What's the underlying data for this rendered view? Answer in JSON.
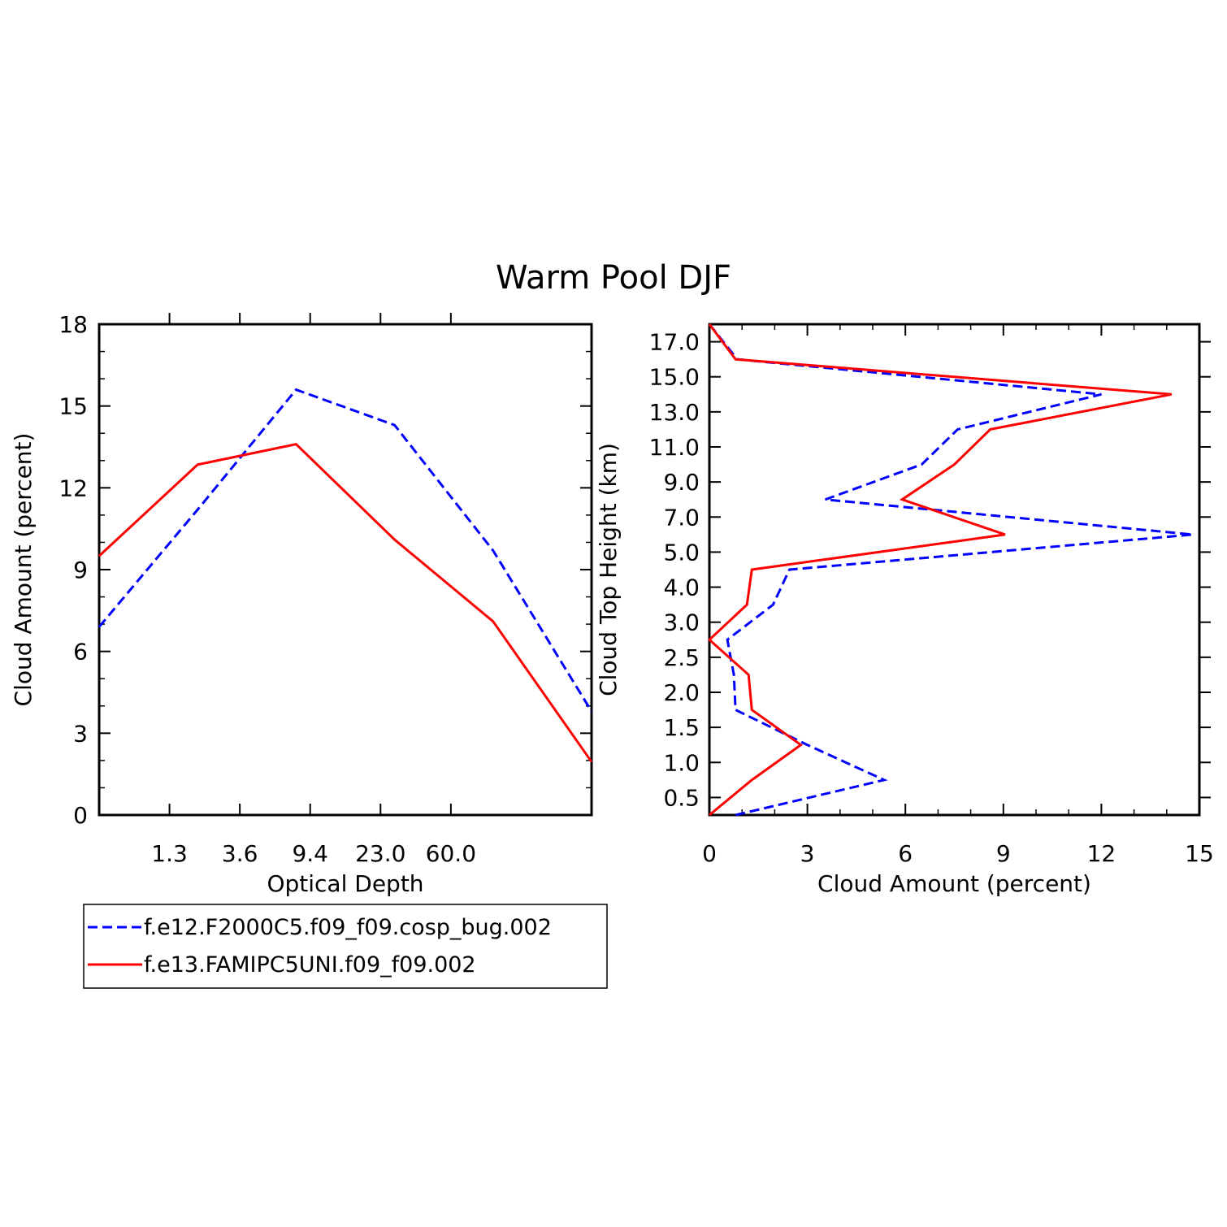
{
  "title": "Warm Pool DJF",
  "colors": {
    "series_a": "#0000ff",
    "series_b": "#ff0000",
    "axis": "#000000"
  },
  "legend": {
    "entries": [
      {
        "label": "f.e12.F2000C5.f09_f09.cosp_bug.002",
        "style": "dashed",
        "color": "#0000ff"
      },
      {
        "label": "f.e13.FAMIPC5UNI.f09_f09.002",
        "style": "solid",
        "color": "#ff0000"
      }
    ]
  },
  "chart_data": [
    {
      "type": "line",
      "xlabel": "Optical Depth",
      "ylabel": "Cloud Amount (percent)",
      "ylim": [
        0,
        18
      ],
      "y_ticks": [
        "0",
        "3",
        "6",
        "9",
        "12",
        "15",
        "18"
      ],
      "x_tick_labels": [
        "1.3",
        "3.6",
        "9.4",
        "23.0",
        "60.0"
      ],
      "x_bins": 7,
      "series": [
        {
          "name": "f.e12.F2000C5.f09_f09.cosp_bug.002",
          "color": "#0000ff",
          "dash": true,
          "values": [
            6.9,
            11.2,
            15.6,
            14.3,
            9.7,
            3.8
          ]
        },
        {
          "name": "f.e13.FAMIPC5UNI.f09_f09.002",
          "color": "#ff0000",
          "dash": false,
          "values": [
            9.5,
            12.85,
            13.6,
            10.1,
            7.1,
            1.95
          ]
        }
      ]
    },
    {
      "type": "line",
      "xlabel": "Cloud Amount (percent)",
      "ylabel": "Cloud Top Height (km)",
      "xlim": [
        0,
        15
      ],
      "x_ticks": [
        "0",
        "3",
        "6",
        "9",
        "12",
        "15"
      ],
      "y_tick_labels": [
        "0.5",
        "1.0",
        "1.5",
        "2.0",
        "2.5",
        "3.0",
        "4.0",
        "5.0",
        "7.0",
        "9.0",
        "11.0",
        "13.0",
        "15.0",
        "17.0"
      ],
      "series": [
        {
          "name": "f.e12.F2000C5.f09_f09.cosp_bug.002",
          "color": "#0000ff",
          "dash": true,
          "values": [
            0.8,
            5.35,
            3.0,
            0.8,
            0.75,
            0.55,
            1.95,
            2.45,
            14.8,
            3.55,
            6.5,
            7.6,
            12.0,
            0.85,
            0.0
          ]
        },
        {
          "name": "f.e13.FAMIPC5UNI.f09_f09.002",
          "color": "#ff0000",
          "dash": false,
          "values": [
            0.0,
            1.3,
            2.8,
            1.3,
            1.2,
            0.0,
            1.15,
            1.3,
            9.05,
            5.9,
            7.5,
            8.6,
            14.15,
            0.8,
            0.0
          ]
        }
      ]
    }
  ]
}
